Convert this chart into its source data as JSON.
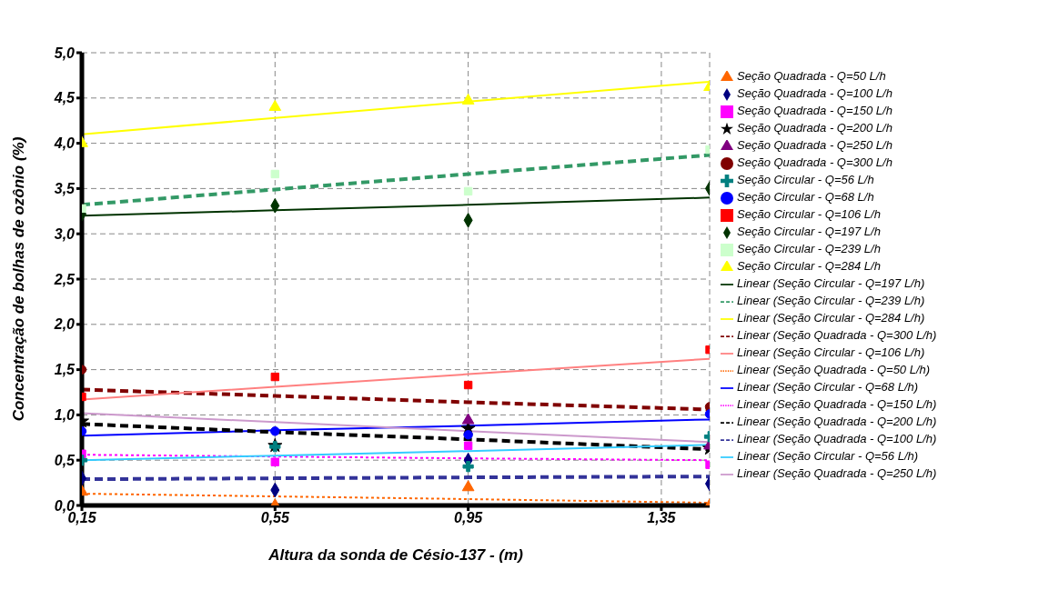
{
  "chart_data": {
    "type": "scatter",
    "xlabel": "Altura da sonda de Césio-137 -  (m)",
    "ylabel": "Concentração de bolhas de ozônio (%)",
    "x": [
      0.15,
      0.55,
      0.95,
      1.45
    ],
    "xlim": [
      0.15,
      1.45
    ],
    "xticks": [
      {
        "value": 0.15,
        "label": "0,15"
      },
      {
        "value": 0.55,
        "label": "0,55"
      },
      {
        "value": 0.95,
        "label": "0,95"
      },
      {
        "value": 1.35,
        "label": "1,35"
      }
    ],
    "ylim": [
      0,
      5
    ],
    "yticks": [
      {
        "value": 0,
        "label": "0,0"
      },
      {
        "value": 0.5,
        "label": "0,5"
      },
      {
        "value": 1,
        "label": "1,0"
      },
      {
        "value": 1.5,
        "label": "1,5"
      },
      {
        "value": 2,
        "label": "2,0"
      },
      {
        "value": 2.5,
        "label": "2,5"
      },
      {
        "value": 3,
        "label": "3,0"
      },
      {
        "value": 3.5,
        "label": "3,5"
      },
      {
        "value": 4,
        "label": "4,0"
      },
      {
        "value": 4.5,
        "label": "4,5"
      },
      {
        "value": 5,
        "label": "5,0"
      }
    ],
    "grid": true,
    "legend": "right",
    "series": [
      {
        "name": "Seção Quadrada - Q=50 L/h",
        "color": "#ff6600",
        "marker": "triangle",
        "values": [
          0.15,
          0.0,
          0.2,
          0.0
        ]
      },
      {
        "name": "Seção Quadrada - Q=100 L/h",
        "color": "#000080",
        "marker": "diamond",
        "values": [
          0.3,
          0.17,
          0.5,
          0.24
        ]
      },
      {
        "name": "Seção Quadrada - Q=150 L/h",
        "color": "#ff00ff",
        "marker": "square",
        "values": [
          0.57,
          0.48,
          0.66,
          0.45
        ]
      },
      {
        "name": "Seção Quadrada - Q=200 L/h",
        "color": "#000000",
        "marker": "star",
        "values": [
          0.93,
          0.66,
          0.85,
          0.63
        ]
      },
      {
        "name": "Seção Quadrada - Q=250 L/h",
        "color": "#800080",
        "marker": "triangle",
        "values": [
          null,
          null,
          0.94,
          0.66
        ]
      },
      {
        "name": "Seção Quadrada - Q=300 L/h",
        "color": "#800000",
        "marker": "circle",
        "values": [
          1.5,
          null,
          null,
          1.09
        ]
      },
      {
        "name": "Seção Circular - Q=56 L/h",
        "color": "#008080",
        "marker": "cross",
        "values": [
          0.5,
          0.65,
          0.43,
          0.76
        ]
      },
      {
        "name": "Seção Circular - Q=68 L/h",
        "color": "#0000ff",
        "marker": "circle",
        "values": [
          0.82,
          0.82,
          0.78,
          1.01
        ]
      },
      {
        "name": "Seção Circular - Q=106 L/h",
        "color": "#ff0000",
        "marker": "square",
        "values": [
          1.2,
          1.42,
          1.33,
          1.72
        ]
      },
      {
        "name": "Seção Circular - Q=197 L/h",
        "color": "#003300",
        "marker": "diamond",
        "values": [
          3.22,
          3.31,
          3.15,
          3.5
        ]
      },
      {
        "name": "Seção Circular - Q=239 L/h",
        "color": "#ccffcc",
        "marker": "square",
        "values": [
          3.28,
          3.66,
          3.47,
          3.93
        ]
      },
      {
        "name": "Seção Circular - Q=284 L/h",
        "color": "#ffff00",
        "marker": "triangle",
        "values": [
          4.0,
          4.4,
          4.47,
          4.62
        ]
      },
      {
        "name": "Linear (Seção Circular - Q=197 L/h)",
        "type": "line",
        "color": "#003300",
        "line_style": "solid",
        "marker": "none",
        "values": [
          3.2,
          3.26,
          3.32,
          3.4
        ]
      },
      {
        "name": "Linear (Seção Circular - Q=239 L/h)",
        "type": "line",
        "color": "#339966",
        "line_style": "dashed",
        "marker": "none",
        "values": [
          3.32,
          3.49,
          3.66,
          3.87
        ]
      },
      {
        "name": "Linear (Seção Circular - Q=284 L/h)",
        "type": "line",
        "color": "#ffff00",
        "line_style": "solid",
        "marker": "none",
        "values": [
          4.1,
          4.28,
          4.46,
          4.68
        ]
      },
      {
        "name": "Linear (Seção Quadrada - Q=300 L/h)",
        "type": "line",
        "color": "#800000",
        "line_style": "dashed",
        "marker": "none",
        "values": [
          1.28,
          1.21,
          1.14,
          1.06
        ]
      },
      {
        "name": "Linear (Seção Circular - Q=106 L/h)",
        "type": "line",
        "color": "#ff8080",
        "line_style": "solid",
        "marker": "none",
        "values": [
          1.17,
          1.31,
          1.45,
          1.62
        ]
      },
      {
        "name": "Linear (Seção Quadrada - Q=50 L/h)",
        "type": "line",
        "color": "#ff6600",
        "line_style": "dotted",
        "marker": "none",
        "values": [
          0.13,
          0.1,
          0.07,
          0.03
        ]
      },
      {
        "name": "Linear (Seção Circular - Q=68 L/h)",
        "type": "line",
        "color": "#0000ff",
        "line_style": "solid",
        "marker": "none",
        "values": [
          0.77,
          0.83,
          0.88,
          0.95
        ]
      },
      {
        "name": "Linear (Seção Quadrada - Q=150 L/h)",
        "type": "line",
        "color": "#ff00ff",
        "line_style": "dotted",
        "marker": "none",
        "values": [
          0.56,
          0.54,
          0.52,
          0.5
        ]
      },
      {
        "name": "Linear (Seção Quadrada - Q=200 L/h)",
        "type": "line",
        "color": "#000000",
        "line_style": "dashed",
        "marker": "none",
        "values": [
          0.9,
          0.81,
          0.73,
          0.62
        ]
      },
      {
        "name": "Linear (Seção Quadrada - Q=100 L/h)",
        "type": "line",
        "color": "#333399",
        "line_style": "dashed",
        "marker": "none",
        "values": [
          0.29,
          0.3,
          0.31,
          0.32
        ]
      },
      {
        "name": "Linear (Seção Circular - Q=56 L/h)",
        "type": "line",
        "color": "#33ccff",
        "line_style": "solid",
        "marker": "none",
        "values": [
          0.5,
          0.55,
          0.6,
          0.67
        ]
      },
      {
        "name": "Linear (Seção Quadrada - Q=250 L/h)",
        "type": "line",
        "color": "#cc99cc",
        "line_style": "solid",
        "marker": "none",
        "values": [
          1.02,
          0.92,
          0.82,
          0.7
        ]
      }
    ]
  }
}
